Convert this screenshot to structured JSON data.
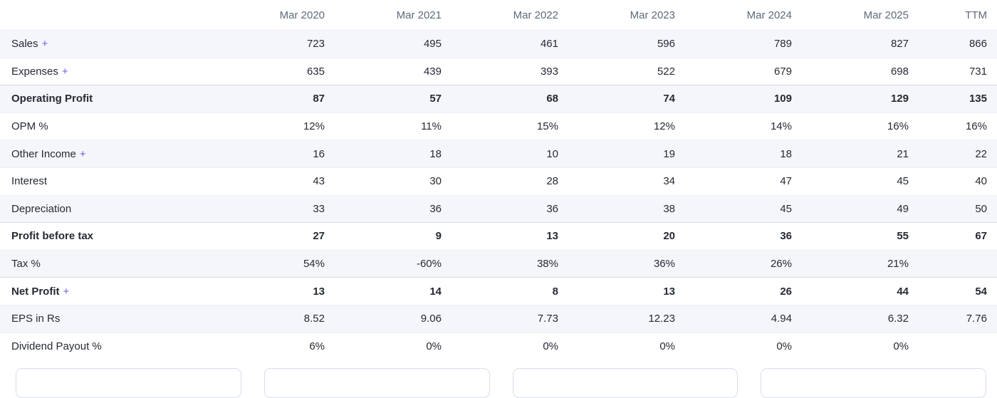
{
  "accent": {
    "plus_link_color": "#6b5ce8",
    "stripe_color": "#f5f6fa",
    "header_text_color": "#5f6979"
  },
  "table": {
    "columns": [
      "Mar 2020",
      "Mar 2021",
      "Mar 2022",
      "Mar 2023",
      "Mar 2024",
      "Mar 2025",
      "TTM"
    ],
    "rows": [
      {
        "label": "Sales",
        "plus": "+",
        "bold": false,
        "values": [
          "723",
          "495",
          "461",
          "596",
          "789",
          "827",
          "866"
        ]
      },
      {
        "label": "Expenses",
        "plus": "+",
        "bold": false,
        "values": [
          "635",
          "439",
          "393",
          "522",
          "679",
          "698",
          "731"
        ]
      },
      {
        "label": "Operating Profit",
        "bold": true,
        "values": [
          "87",
          "57",
          "68",
          "74",
          "109",
          "129",
          "135"
        ]
      },
      {
        "label": "OPM %",
        "bold": false,
        "values": [
          "12%",
          "11%",
          "15%",
          "12%",
          "14%",
          "16%",
          "16%"
        ]
      },
      {
        "label": "Other Income",
        "plus": "+",
        "bold": false,
        "values": [
          "16",
          "18",
          "10",
          "19",
          "18",
          "21",
          "22"
        ]
      },
      {
        "label": "Interest",
        "bold": false,
        "values": [
          "43",
          "30",
          "28",
          "34",
          "47",
          "45",
          "40"
        ]
      },
      {
        "label": "Depreciation",
        "bold": false,
        "values": [
          "33",
          "36",
          "36",
          "38",
          "45",
          "49",
          "50"
        ]
      },
      {
        "label": "Profit before tax",
        "bold": true,
        "values": [
          "27",
          "9",
          "13",
          "20",
          "36",
          "55",
          "67"
        ]
      },
      {
        "label": "Tax %",
        "bold": false,
        "values": [
          "54%",
          "-60%",
          "38%",
          "36%",
          "26%",
          "21%",
          ""
        ]
      },
      {
        "label": "Net Profit",
        "plus": "+",
        "bold": true,
        "values": [
          "13",
          "14",
          "8",
          "13",
          "26",
          "44",
          "54"
        ]
      },
      {
        "label": "EPS in Rs",
        "bold": false,
        "values": [
          "8.52",
          "9.06",
          "7.73",
          "12.23",
          "4.94",
          "6.32",
          "7.76"
        ]
      },
      {
        "label": "Dividend Payout %",
        "bold": false,
        "values": [
          "6%",
          "0%",
          "0%",
          "0%",
          "0%",
          "0%",
          ""
        ]
      }
    ]
  },
  "footer": {
    "card_count": 4
  }
}
